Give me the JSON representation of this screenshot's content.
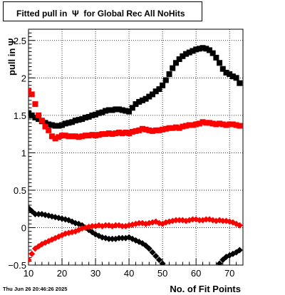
{
  "chart_data": {
    "type": "scatter",
    "title": "Fitted pull in  Ψ  for Global Rec All NoHits",
    "xlabel": "No. of Fit Points",
    "ylabel": "pull in  Ψ",
    "xlim": [
      10,
      74
    ],
    "ylim": [
      -0.5,
      2.65
    ],
    "xticks": [
      10,
      20,
      30,
      40,
      50,
      60,
      70
    ],
    "yticks": [
      -0.5,
      0,
      0.5,
      1,
      1.5,
      2,
      2.5
    ],
    "ytick_labels": [
      "−0.5",
      "0",
      "0.5",
      "1",
      "1.5",
      "2",
      "2.5"
    ],
    "grid": true,
    "timestamp": "Thu Jun 26 20:46:26 2025",
    "series": [
      {
        "color": "#000000",
        "marker": "square",
        "x": [
          10,
          11,
          12,
          13,
          14,
          15,
          16,
          17,
          18,
          19,
          20,
          21,
          22,
          23,
          24,
          25,
          26,
          27,
          28,
          29,
          30,
          31,
          32,
          33,
          34,
          35,
          36,
          37,
          38,
          39,
          40,
          41,
          42,
          43,
          44,
          45,
          46,
          47,
          48,
          49,
          50,
          51,
          52,
          53,
          54,
          55,
          56,
          57,
          58,
          59,
          60,
          61,
          62,
          63,
          64,
          65,
          66,
          67,
          68,
          69,
          70,
          71,
          72,
          73
        ],
        "y": [
          1.53,
          1.5,
          1.47,
          1.45,
          1.42,
          1.4,
          1.38,
          1.37,
          1.36,
          1.36,
          1.37,
          1.39,
          1.4,
          1.41,
          1.43,
          1.44,
          1.45,
          1.47,
          1.48,
          1.5,
          1.51,
          1.53,
          1.54,
          1.56,
          1.57,
          1.57,
          1.58,
          1.58,
          1.57,
          1.56,
          1.55,
          1.6,
          1.65,
          1.68,
          1.7,
          1.72,
          1.75,
          1.78,
          1.82,
          1.85,
          1.9,
          1.97,
          2.05,
          2.13,
          2.2,
          2.25,
          2.29,
          2.32,
          2.34,
          2.36,
          2.38,
          2.39,
          2.4,
          2.39,
          2.37,
          2.33,
          2.27,
          2.2,
          2.12,
          2.07,
          2.05,
          2.02,
          2.0,
          1.93
        ]
      },
      {
        "color": "#ff0000",
        "marker": "square",
        "x": [
          10,
          11,
          12,
          13,
          14,
          15,
          16,
          17,
          18,
          19,
          20,
          21,
          22,
          23,
          24,
          25,
          26,
          27,
          28,
          29,
          30,
          31,
          32,
          33,
          34,
          35,
          36,
          37,
          38,
          39,
          40,
          41,
          42,
          43,
          44,
          45,
          46,
          47,
          48,
          49,
          50,
          51,
          52,
          53,
          54,
          55,
          56,
          57,
          58,
          59,
          60,
          61,
          62,
          63,
          64,
          65,
          66,
          67,
          68,
          69,
          70,
          71,
          72,
          73
        ],
        "y": [
          1.83,
          1.78,
          1.65,
          1.5,
          1.43,
          1.35,
          1.3,
          1.22,
          1.19,
          1.21,
          1.23,
          1.23,
          1.22,
          1.22,
          1.22,
          1.21,
          1.22,
          1.23,
          1.23,
          1.24,
          1.23,
          1.24,
          1.25,
          1.25,
          1.26,
          1.25,
          1.26,
          1.27,
          1.26,
          1.27,
          1.26,
          1.28,
          1.29,
          1.3,
          1.32,
          1.31,
          1.3,
          1.29,
          1.3,
          1.3,
          1.31,
          1.32,
          1.33,
          1.33,
          1.34,
          1.33,
          1.35,
          1.36,
          1.37,
          1.37,
          1.38,
          1.39,
          1.41,
          1.4,
          1.4,
          1.39,
          1.38,
          1.39,
          1.38,
          1.37,
          1.38,
          1.38,
          1.37,
          1.36
        ]
      },
      {
        "color": "#000000",
        "marker": "diamond",
        "x": [
          10,
          11,
          12,
          13,
          14,
          15,
          16,
          17,
          18,
          19,
          20,
          21,
          22,
          23,
          24,
          25,
          26,
          27,
          28,
          29,
          30,
          31,
          32,
          33,
          34,
          35,
          36,
          37,
          38,
          39,
          40,
          41,
          42,
          43,
          44,
          45,
          46,
          47,
          48,
          49,
          50,
          67,
          68,
          69,
          70,
          71,
          72,
          73
        ],
        "y": [
          0.26,
          0.22,
          0.18,
          0.18,
          0.18,
          0.17,
          0.16,
          0.15,
          0.14,
          0.13,
          0.12,
          0.11,
          0.1,
          0.08,
          0.06,
          0.05,
          0.03,
          0.0,
          -0.03,
          -0.06,
          -0.09,
          -0.11,
          -0.13,
          -0.14,
          -0.15,
          -0.15,
          -0.15,
          -0.14,
          -0.14,
          -0.14,
          -0.13,
          -0.15,
          -0.17,
          -0.19,
          -0.21,
          -0.24,
          -0.28,
          -0.33,
          -0.38,
          -0.43,
          -0.48,
          -0.48,
          -0.43,
          -0.39,
          -0.37,
          -0.35,
          -0.33,
          -0.3
        ]
      },
      {
        "color": "#ff0000",
        "marker": "diamond",
        "x": [
          10,
          11,
          12,
          13,
          14,
          15,
          16,
          17,
          18,
          19,
          20,
          21,
          22,
          23,
          24,
          25,
          26,
          27,
          28,
          29,
          30,
          31,
          32,
          33,
          34,
          35,
          36,
          37,
          38,
          39,
          40,
          41,
          42,
          43,
          44,
          45,
          46,
          47,
          48,
          49,
          50,
          51,
          52,
          53,
          54,
          55,
          56,
          57,
          58,
          59,
          60,
          61,
          62,
          63,
          64,
          65,
          66,
          67,
          68,
          69,
          70,
          71,
          72,
          73
        ],
        "y": [
          -0.43,
          -0.35,
          -0.28,
          -0.25,
          -0.22,
          -0.2,
          -0.18,
          -0.16,
          -0.14,
          -0.12,
          -0.1,
          -0.08,
          -0.07,
          -0.06,
          -0.05,
          -0.03,
          -0.01,
          0.0,
          0.01,
          0.02,
          0.02,
          0.03,
          0.02,
          0.03,
          0.03,
          0.02,
          0.03,
          0.03,
          0.02,
          0.02,
          0.03,
          0.04,
          0.05,
          0.06,
          0.06,
          0.05,
          0.06,
          0.07,
          0.08,
          0.06,
          0.05,
          0.07,
          0.08,
          0.09,
          0.1,
          0.1,
          0.1,
          0.09,
          0.1,
          0.11,
          0.11,
          0.1,
          0.1,
          0.11,
          0.11,
          0.1,
          0.09,
          0.1,
          0.09,
          0.09,
          0.08,
          0.07,
          0.05,
          0.03
        ]
      }
    ]
  }
}
